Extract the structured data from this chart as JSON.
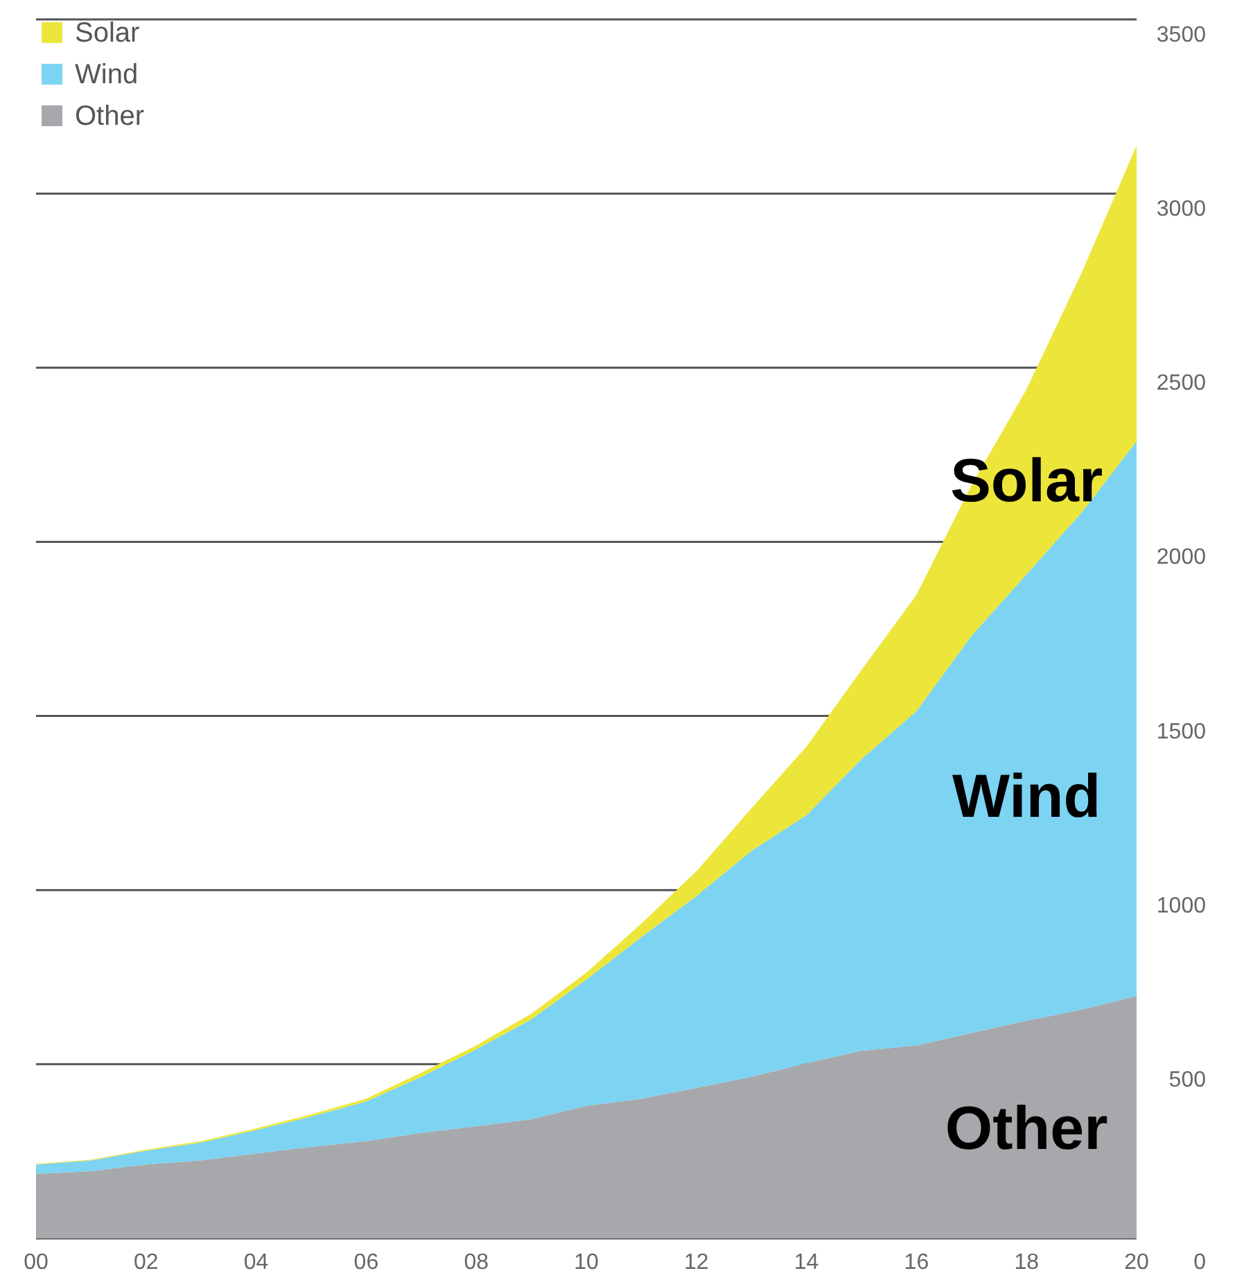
{
  "chart_data": {
    "type": "area",
    "stacked": true,
    "x": [
      2000,
      2001,
      2002,
      2003,
      2004,
      2005,
      2006,
      2007,
      2008,
      2009,
      2010,
      2011,
      2012,
      2013,
      2014,
      2015,
      2016,
      2017,
      2018,
      2019,
      2020
    ],
    "xlim": [
      2000,
      2020
    ],
    "xticks": [
      {
        "value": 2000,
        "label": "00"
      },
      {
        "value": 2002,
        "label": "02"
      },
      {
        "value": 2004,
        "label": "04"
      },
      {
        "value": 2006,
        "label": "06"
      },
      {
        "value": 2008,
        "label": "08"
      },
      {
        "value": 2010,
        "label": "10"
      },
      {
        "value": 2012,
        "label": "12"
      },
      {
        "value": 2014,
        "label": "14"
      },
      {
        "value": 2016,
        "label": "16"
      },
      {
        "value": 2018,
        "label": "18"
      },
      {
        "value": 2020,
        "label": "20"
      }
    ],
    "ylim": [
      0,
      3500
    ],
    "yticks": [
      0,
      500,
      1000,
      1500,
      2000,
      2500,
      3000,
      3500
    ],
    "grid": "y",
    "legend": "top left",
    "series": [
      {
        "name": "Other",
        "color": "#a7a8ab",
        "values": [
          185,
          193,
          212,
          224,
          244,
          263,
          279,
          303,
          322,
          342,
          381,
          401,
          432,
          464,
          503,
          539,
          554,
          590,
          625,
          657,
          696
        ]
      },
      {
        "name": "Wind",
        "color": "#7dd3f2",
        "values": [
          27,
          31,
          40,
          51,
          67,
          87,
          114,
          161,
          221,
          287,
          362,
          464,
          551,
          649,
          712,
          837,
          960,
          1140,
          1282,
          1427,
          1593
        ]
      },
      {
        "name": "Solar",
        "color": "#ede63a",
        "values": [
          2,
          2,
          3,
          4,
          5,
          6,
          8,
          12,
          11,
          16,
          20,
          39,
          71,
          122,
          197,
          256,
          334,
          433,
          531,
          688,
          849
        ]
      }
    ]
  }
}
